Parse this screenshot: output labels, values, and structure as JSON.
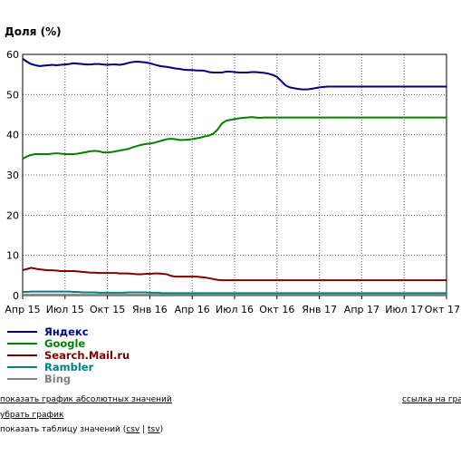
{
  "chart_data": {
    "type": "line",
    "ylabel": "Доля (%)",
    "ylim": [
      0,
      60
    ],
    "yticks": [
      0,
      10,
      20,
      30,
      40,
      50,
      60
    ],
    "x_tick_labels": [
      "Апр 15",
      "Июл 15",
      "Окт 15",
      "Янв 16",
      "Апр 16",
      "Июл 16",
      "Окт 16",
      "Янв 17",
      "Апр 17",
      "Июл 17",
      "Окт 17"
    ],
    "grid": true,
    "legend_position": "bottom-left",
    "x": [
      0,
      1,
      2,
      3,
      4,
      5,
      6,
      7,
      8,
      9,
      10,
      11,
      12,
      13,
      14,
      15,
      16,
      17,
      18,
      19,
      20,
      21,
      22,
      23,
      24,
      25,
      26,
      27,
      28,
      29,
      30,
      31,
      32,
      33,
      34,
      35,
      36,
      37,
      38,
      39,
      40,
      41,
      42,
      43,
      44,
      45,
      46,
      47,
      48,
      49,
      50,
      51,
      52,
      53,
      54,
      55,
      56,
      57,
      58,
      59,
      60,
      61,
      62,
      63,
      64,
      65,
      66,
      67,
      68,
      69,
      70,
      71,
      72,
      73,
      74,
      75,
      76,
      77,
      78,
      79,
      80,
      81,
      82,
      83,
      84,
      85,
      86,
      87,
      88,
      89,
      90,
      91,
      92,
      93,
      94,
      95,
      96,
      97,
      98,
      99,
      100
    ],
    "series": [
      {
        "name": "Яндекс",
        "color": "#000080",
        "values": [
          58.9,
          58.2,
          57.6,
          57.3,
          57.1,
          57.2,
          57.3,
          57.4,
          57.3,
          57.4,
          57.5,
          57.6,
          57.8,
          57.7,
          57.6,
          57.5,
          57.5,
          57.6,
          57.6,
          57.5,
          57.4,
          57.5,
          57.5,
          57.4,
          57.6,
          57.9,
          58.1,
          58.2,
          58.1,
          58.0,
          57.8,
          57.5,
          57.2,
          57.0,
          56.9,
          56.7,
          56.5,
          56.4,
          56.2,
          56.1,
          56.1,
          56.0,
          56.0,
          55.9,
          55.6,
          55.5,
          55.5,
          55.5,
          55.7,
          55.7,
          55.6,
          55.5,
          55.5,
          55.5,
          55.6,
          55.6,
          55.5,
          55.4,
          55.2,
          54.9,
          54.4,
          53.4,
          52.3,
          51.8,
          51.6,
          51.4,
          51.3,
          51.3,
          51.4,
          51.6,
          51.8,
          51.9,
          52.0,
          52.0,
          52.0,
          52.0,
          52.0,
          52.0,
          52.0,
          52.0,
          52.0,
          52.0,
          52.0,
          52.0,
          52.0,
          52.0,
          52.0,
          52.0,
          52.0,
          52.0,
          52.0,
          52.0,
          52.0,
          52.0,
          52.0,
          52.0,
          52.0,
          52.0,
          52.0,
          52.0,
          52.0
        ]
      },
      {
        "name": "Google",
        "color": "#008000",
        "values": [
          34.0,
          34.6,
          35.0,
          35.2,
          35.2,
          35.2,
          35.2,
          35.3,
          35.4,
          35.3,
          35.2,
          35.2,
          35.2,
          35.3,
          35.5,
          35.7,
          35.9,
          36.0,
          35.9,
          35.6,
          35.6,
          35.7,
          35.9,
          36.1,
          36.3,
          36.5,
          36.9,
          37.2,
          37.5,
          37.7,
          37.8,
          38.0,
          38.3,
          38.6,
          38.9,
          39.0,
          38.9,
          38.7,
          38.7,
          38.8,
          38.9,
          39.1,
          39.3,
          39.6,
          39.8,
          40.3,
          41.3,
          42.8,
          43.5,
          43.7,
          43.9,
          44.1,
          44.2,
          44.3,
          44.4,
          44.3,
          44.2,
          44.3,
          44.3,
          44.3,
          44.3,
          44.3,
          44.3,
          44.3,
          44.3,
          44.3,
          44.3,
          44.3,
          44.3,
          44.3,
          44.3,
          44.3,
          44.3,
          44.3,
          44.3,
          44.3,
          44.3,
          44.3,
          44.3,
          44.3,
          44.3,
          44.3,
          44.3,
          44.3,
          44.3,
          44.3,
          44.3,
          44.3,
          44.3,
          44.3,
          44.3,
          44.3,
          44.3,
          44.3,
          44.3,
          44.3,
          44.3,
          44.3,
          44.3,
          44.3,
          44.3
        ]
      },
      {
        "name": "Search.Mail.ru",
        "color": "#800000",
        "values": [
          6.3,
          6.6,
          6.9,
          6.7,
          6.5,
          6.4,
          6.3,
          6.3,
          6.2,
          6.1,
          6.1,
          6.1,
          6.1,
          6.0,
          5.9,
          5.8,
          5.7,
          5.7,
          5.6,
          5.6,
          5.6,
          5.6,
          5.6,
          5.5,
          5.5,
          5.5,
          5.4,
          5.3,
          5.3,
          5.4,
          5.4,
          5.5,
          5.5,
          5.4,
          5.3,
          4.9,
          4.7,
          4.7,
          4.7,
          4.7,
          4.7,
          4.7,
          4.6,
          4.5,
          4.3,
          4.1,
          3.9,
          3.8,
          3.8,
          3.8,
          3.8,
          3.8,
          3.8,
          3.8,
          3.8,
          3.8,
          3.8,
          3.8,
          3.8,
          3.8,
          3.8,
          3.8,
          3.8,
          3.8,
          3.8,
          3.8,
          3.8,
          3.8,
          3.8,
          3.8,
          3.8,
          3.8,
          3.8,
          3.8,
          3.8,
          3.8,
          3.8,
          3.8,
          3.8,
          3.8,
          3.8,
          3.8,
          3.8,
          3.8,
          3.8,
          3.8,
          3.8,
          3.8,
          3.8,
          3.8,
          3.8,
          3.8,
          3.8,
          3.8,
          3.8,
          3.8,
          3.8,
          3.8,
          3.8,
          3.8,
          3.8
        ]
      },
      {
        "name": "Rambler",
        "color": "#008080",
        "values": [
          0.9,
          0.9,
          1.0,
          1.0,
          1.0,
          1.0,
          1.0,
          1.0,
          1.0,
          1.0,
          1.0,
          1.0,
          0.9,
          0.9,
          0.8,
          0.8,
          0.8,
          0.8,
          0.7,
          0.7,
          0.7,
          0.7,
          0.7,
          0.7,
          0.7,
          0.8,
          0.8,
          0.8,
          0.8,
          0.8,
          0.7,
          0.7,
          0.7,
          0.6,
          0.6,
          0.6,
          0.6,
          0.6,
          0.6,
          0.6,
          0.6,
          0.6,
          0.6,
          0.6,
          0.6,
          0.6,
          0.6,
          0.6,
          0.6,
          0.6,
          0.6,
          0.6,
          0.6,
          0.6,
          0.6,
          0.6,
          0.6,
          0.6,
          0.6,
          0.6,
          0.6,
          0.6,
          0.6,
          0.6,
          0.6,
          0.6,
          0.6,
          0.6,
          0.6,
          0.6,
          0.6,
          0.6,
          0.6,
          0.6,
          0.6,
          0.6,
          0.6,
          0.6,
          0.6,
          0.6,
          0.6,
          0.6,
          0.6,
          0.6,
          0.6,
          0.6,
          0.6,
          0.6,
          0.6,
          0.6,
          0.6,
          0.6,
          0.6,
          0.6,
          0.6,
          0.6,
          0.6,
          0.6,
          0.6,
          0.6,
          0.6
        ]
      },
      {
        "name": "Bing",
        "color": "#808080",
        "values": [
          0.2,
          0.2,
          0.2,
          0.2,
          0.2,
          0.2,
          0.2,
          0.2,
          0.2,
          0.2,
          0.2,
          0.2,
          0.2,
          0.2,
          0.2,
          0.2,
          0.2,
          0.2,
          0.2,
          0.2,
          0.2,
          0.2,
          0.2,
          0.2,
          0.2,
          0.2,
          0.2,
          0.2,
          0.2,
          0.2,
          0.2,
          0.2,
          0.2,
          0.2,
          0.2,
          0.2,
          0.2,
          0.2,
          0.2,
          0.2,
          0.2,
          0.2,
          0.2,
          0.2,
          0.2,
          0.2,
          0.2,
          0.2,
          0.2,
          0.2,
          0.2,
          0.2,
          0.2,
          0.2,
          0.2,
          0.2,
          0.2,
          0.2,
          0.2,
          0.2,
          0.2,
          0.2,
          0.2,
          0.2,
          0.2,
          0.2,
          0.2,
          0.2,
          0.2,
          0.2,
          0.2,
          0.2,
          0.2,
          0.2,
          0.2,
          0.2,
          0.2,
          0.2,
          0.2,
          0.2,
          0.2,
          0.2,
          0.2,
          0.2,
          0.2,
          0.2,
          0.2,
          0.2,
          0.2,
          0.2,
          0.2,
          0.2,
          0.2,
          0.2,
          0.2,
          0.2,
          0.2,
          0.2,
          0.2,
          0.2,
          0.2
        ]
      }
    ]
  },
  "links": {
    "abs": "показать график абсолютных значений",
    "hide": "убрать график",
    "table_prefix": "показать таблицу значений (",
    "csv": "csv",
    "sep": " | ",
    "tsv": "tsv",
    "table_suffix": ")",
    "ref": "ссылка на граф"
  }
}
